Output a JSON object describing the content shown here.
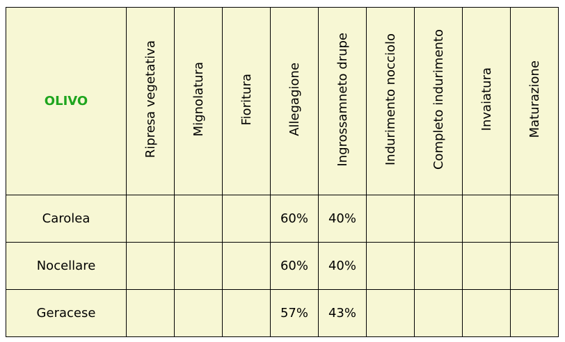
{
  "table": {
    "corner": "OLIVO",
    "columns": [
      "Ripresa vegetativa",
      "Mignolatura",
      "Fioritura",
      "Allegagione",
      "Ingrossamneto drupe",
      "Indurimento nocciolo",
      "Completo indurimento",
      "Invaiatura",
      "Maturazione"
    ],
    "rows": [
      {
        "label": "Carolea",
        "values": {
          "Allegagione": "60%",
          "Ingrossamneto drupe": "40%"
        }
      },
      {
        "label": "Nocellare",
        "values": {
          "Allegagione": "60%",
          "Ingrossamneto drupe": "40%"
        }
      },
      {
        "label": "Geracese",
        "values": {
          "Allegagione": "57%",
          "Ingrossamneto drupe": "43%"
        }
      }
    ]
  }
}
